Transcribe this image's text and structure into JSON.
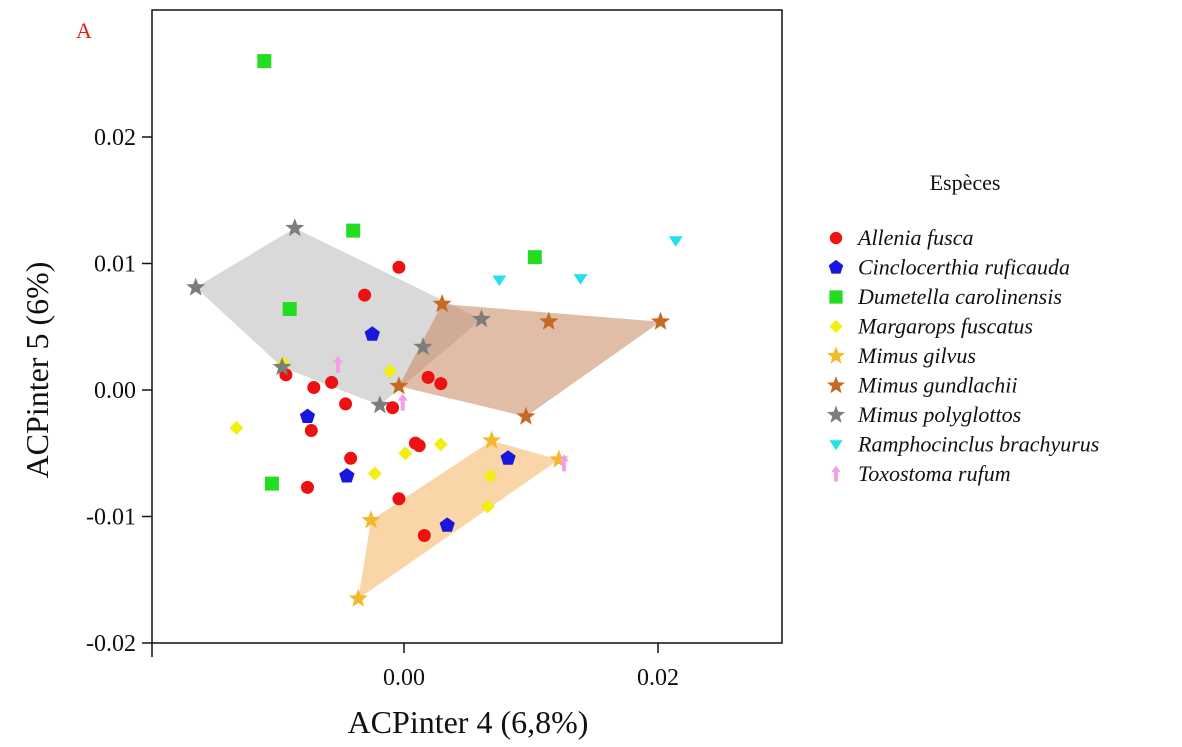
{
  "chart_data": {
    "type": "scatter",
    "panel_label": "A",
    "xlabel": "ACPinter 4 (6,8%)",
    "ylabel": "ACPinter 5 (6%)",
    "xlim": [
      -0.02,
      0.03
    ],
    "ylim": [
      -0.02,
      0.03
    ],
    "x_ticks": [
      {
        "value": 0.0,
        "label": "0.00"
      },
      {
        "value": 0.02,
        "label": "0.02"
      }
    ],
    "y_ticks": [
      {
        "value": 0.02,
        "label": "0.02"
      },
      {
        "value": 0.01,
        "label": "0.01"
      },
      {
        "value": 0.0,
        "label": "0.00"
      },
      {
        "value": -0.01,
        "label": "-0.01"
      },
      {
        "value": -0.02,
        "label": "-0.02"
      }
    ],
    "grid": false,
    "legend_title": "Espèces",
    "legend_position": "right",
    "hulls": [
      {
        "series": "Mimus polyglottos",
        "color": "#b9b9b9",
        "points": [
          [
            -0.0164,
            0.0081
          ],
          [
            -0.0086,
            0.0128
          ],
          [
            0.0061,
            0.0056
          ],
          [
            -0.0019,
            -0.0012
          ],
          [
            -0.0096,
            0.0018
          ]
        ]
      },
      {
        "series": "Mimus gundlachii",
        "color": "#c9875f",
        "points": [
          [
            -0.0004,
            0.0003
          ],
          [
            0.003,
            0.0068
          ],
          [
            0.0202,
            0.0054
          ],
          [
            0.0096,
            -0.0021
          ]
        ]
      },
      {
        "series": "Mimus gilvus",
        "color": "#f5b360",
        "points": [
          [
            -0.0036,
            -0.0165
          ],
          [
            -0.0026,
            -0.0103
          ],
          [
            0.0069,
            -0.004
          ],
          [
            0.0122,
            -0.0055
          ]
        ]
      }
    ],
    "series": [
      {
        "name": "Allenia fusca",
        "marker": "circle",
        "color": "#ee1111",
        "points": [
          [
            -0.0093,
            0.0012
          ],
          [
            -0.0071,
            0.0002
          ],
          [
            -0.0057,
            0.0006
          ],
          [
            -0.0046,
            -0.0011
          ],
          [
            -0.0031,
            0.0075
          ],
          [
            -0.0004,
            0.0097
          ],
          [
            -0.0009,
            -0.0014
          ],
          [
            0.0019,
            0.001
          ],
          [
            0.0029,
            0.0005
          ],
          [
            0.0009,
            -0.0042
          ],
          [
            0.0012,
            -0.0044
          ],
          [
            -0.0073,
            -0.0032
          ],
          [
            -0.0042,
            -0.0054
          ],
          [
            -0.0076,
            -0.0077
          ],
          [
            -0.0004,
            -0.0086
          ],
          [
            0.0016,
            -0.0115
          ]
        ]
      },
      {
        "name": "Cinclocerthia ruficauda",
        "marker": "pentagon",
        "color": "#1818dd",
        "points": [
          [
            -0.0025,
            0.0044
          ],
          [
            -0.0076,
            -0.0021
          ],
          [
            -0.0045,
            -0.0068
          ],
          [
            0.0082,
            -0.0054
          ],
          [
            0.0034,
            -0.0107
          ]
        ]
      },
      {
        "name": "Dumetella carolinensis",
        "marker": "square",
        "color": "#22dd22",
        "points": [
          [
            -0.011,
            0.026
          ],
          [
            -0.004,
            0.0126
          ],
          [
            -0.009,
            0.0064
          ],
          [
            0.0103,
            0.0105
          ],
          [
            -0.0104,
            -0.0074
          ]
        ]
      },
      {
        "name": "Margarops fuscatus",
        "marker": "diamond",
        "color": "#f2ee10",
        "points": [
          [
            -0.0132,
            -0.003
          ],
          [
            -0.0095,
            0.0021
          ],
          [
            -0.0011,
            0.0015
          ],
          [
            -0.0023,
            -0.0066
          ],
          [
            0.0001,
            -0.005
          ],
          [
            0.0029,
            -0.0043
          ],
          [
            0.0068,
            -0.0068
          ],
          [
            0.0066,
            -0.0092
          ]
        ]
      },
      {
        "name": "Mimus gilvus",
        "marker": "star",
        "color": "#f2b92c",
        "points": [
          [
            -0.0036,
            -0.0165
          ],
          [
            -0.0026,
            -0.0103
          ],
          [
            0.0069,
            -0.004
          ],
          [
            0.0122,
            -0.0055
          ]
        ]
      },
      {
        "name": "Mimus gundlachii",
        "marker": "star",
        "color": "#c46a26",
        "points": [
          [
            -0.0004,
            0.0003
          ],
          [
            0.003,
            0.0068
          ],
          [
            0.0114,
            0.0054
          ],
          [
            0.0202,
            0.0054
          ],
          [
            0.0096,
            -0.0021
          ]
        ]
      },
      {
        "name": "Mimus polyglottos",
        "marker": "star",
        "color": "#7d7d7d",
        "points": [
          [
            -0.0164,
            0.0081
          ],
          [
            -0.0086,
            0.0128
          ],
          [
            0.0061,
            0.0056
          ],
          [
            0.0015,
            0.0034
          ],
          [
            -0.0019,
            -0.0012
          ],
          [
            -0.0096,
            0.0018
          ]
        ]
      },
      {
        "name": "Ramphocinclus brachyurus",
        "marker": "triangle-down",
        "color": "#22e0ef",
        "points": [
          [
            0.0075,
            0.0087
          ],
          [
            0.0139,
            0.0088
          ],
          [
            0.0214,
            0.0118
          ]
        ]
      },
      {
        "name": "Toxostoma rufum",
        "marker": "arrow-up",
        "color": "#f59ee8",
        "points": [
          [
            -0.0052,
            0.002
          ],
          [
            -0.0001,
            -0.001
          ],
          [
            0.0126,
            -0.0058
          ]
        ]
      }
    ]
  }
}
